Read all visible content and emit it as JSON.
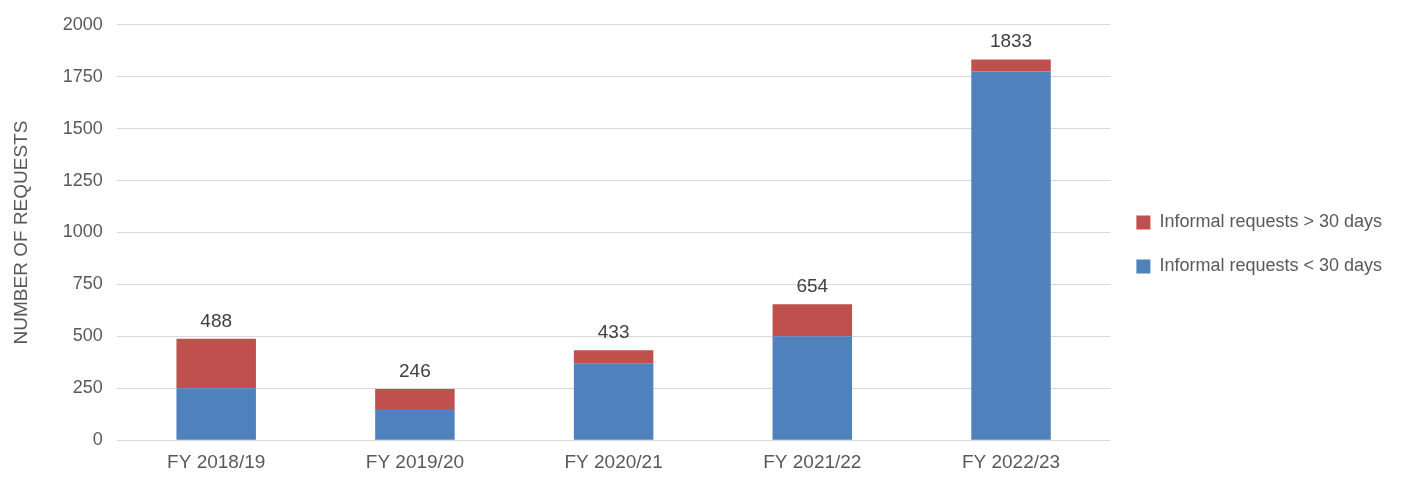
{
  "chart_data": {
    "type": "bar",
    "stacked": true,
    "categories": [
      "FY 2018/19",
      "FY 2019/20",
      "FY 2020/21",
      "FY 2021/22",
      "FY 2022/23"
    ],
    "series": [
      {
        "name": "Informal requests < 30 days",
        "color": "#4F81BD",
        "values": [
          250,
          150,
          370,
          500,
          1775
        ]
      },
      {
        "name": "Informal requests > 30 days",
        "color": "#C0504D",
        "values": [
          238,
          96,
          63,
          154,
          58
        ]
      }
    ],
    "totals": [
      488,
      246,
      433,
      654,
      1833
    ],
    "ylabel": "NUMBER OF REQUESTS",
    "ylim": [
      0,
      2000
    ],
    "yticks": [
      0,
      250,
      500,
      750,
      1000,
      1250,
      1500,
      1750,
      2000
    ],
    "grid": true,
    "legend": "right"
  }
}
